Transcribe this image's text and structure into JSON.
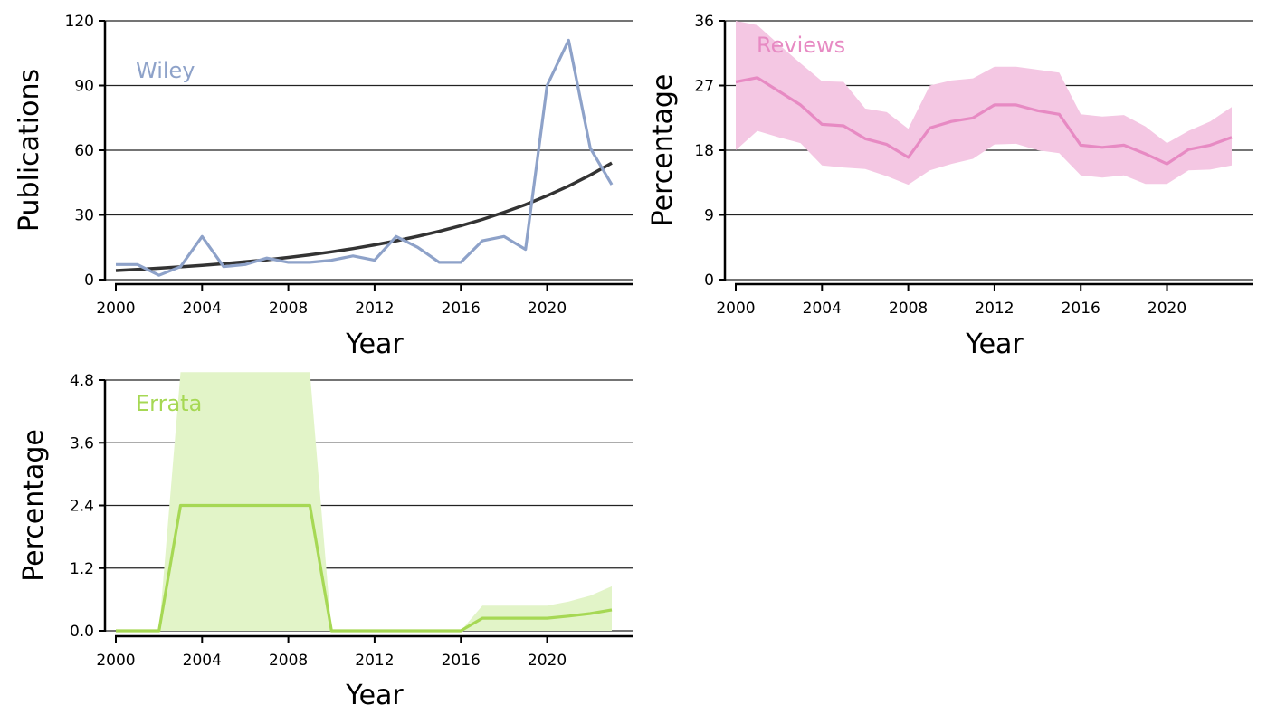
{
  "chart_data": [
    {
      "type": "line",
      "panel_label": "Wiley",
      "xlabel": "Year",
      "ylabel": "Publications",
      "xlim": [
        2000,
        2023
      ],
      "ylim": [
        0,
        120
      ],
      "xticks": [
        2000,
        2004,
        2008,
        2012,
        2016,
        2020
      ],
      "yticks": [
        0,
        30,
        60,
        90,
        120
      ],
      "grid": "horizontal",
      "color": "#8ea2c9",
      "x": [
        2000,
        2001,
        2002,
        2003,
        2004,
        2005,
        2006,
        2007,
        2008,
        2009,
        2010,
        2011,
        2012,
        2013,
        2014,
        2015,
        2016,
        2017,
        2018,
        2019,
        2020,
        2021,
        2022,
        2023
      ],
      "series": [
        {
          "values": [
            7,
            7,
            2,
            6,
            20,
            6,
            7,
            10,
            8,
            8,
            9,
            11,
            9,
            20,
            15,
            8,
            8,
            18,
            20,
            14,
            90,
            111,
            61,
            44
          ]
        }
      ],
      "trend": {
        "color": "#333333",
        "x": [
          2000,
          2001,
          2002,
          2003,
          2004,
          2005,
          2006,
          2007,
          2008,
          2009,
          2010,
          2011,
          2012,
          2013,
          2014,
          2015,
          2016,
          2017,
          2018,
          2019,
          2020,
          2021,
          2022,
          2023
        ],
        "values": [
          4.2,
          4.7,
          5.3,
          5.9,
          6.6,
          7.4,
          8.3,
          9.2,
          10.3,
          11.5,
          12.9,
          14.4,
          16.1,
          18.0,
          20.1,
          22.4,
          25.0,
          27.9,
          31.2,
          34.8,
          38.9,
          43.4,
          48.5,
          54.1
        ]
      }
    },
    {
      "type": "area",
      "panel_label": "Reviews",
      "xlabel": "Year",
      "ylabel": "Percentage",
      "xlim": [
        2000,
        2023
      ],
      "ylim": [
        0,
        36
      ],
      "xticks": [
        2000,
        2004,
        2008,
        2012,
        2016,
        2020
      ],
      "yticks": [
        0,
        9,
        18,
        27,
        36
      ],
      "grid": "horizontal",
      "color": "#e78ac3",
      "band_color": "#f4c7e3",
      "x": [
        2000,
        2001,
        2002,
        2003,
        2004,
        2005,
        2006,
        2007,
        2008,
        2009,
        2010,
        2011,
        2012,
        2013,
        2014,
        2015,
        2016,
        2017,
        2018,
        2019,
        2020,
        2021,
        2022,
        2023
      ],
      "series": [
        {
          "values": [
            27.5,
            28.1,
            26.2,
            24.3,
            21.6,
            21.4,
            19.6,
            18.8,
            17.0,
            21.1,
            22.0,
            22.5,
            24.3,
            24.3,
            23.5,
            23.0,
            18.7,
            18.4,
            18.7,
            17.5,
            16.1,
            18.1,
            18.7,
            19.8
          ],
          "lower": [
            18.0,
            20.7,
            19.8,
            19.0,
            15.9,
            15.6,
            15.4,
            14.4,
            13.2,
            15.2,
            16.1,
            16.8,
            18.8,
            18.9,
            18.0,
            17.6,
            14.5,
            14.2,
            14.5,
            13.3,
            13.3,
            15.2,
            15.3,
            15.9
          ],
          "upper": [
            36.0,
            35.4,
            32.7,
            30.1,
            27.6,
            27.5,
            23.8,
            23.3,
            21.0,
            27.0,
            27.7,
            28.0,
            29.6,
            29.6,
            29.2,
            28.8,
            23.0,
            22.7,
            22.9,
            21.3,
            19.0,
            20.7,
            22.0,
            24.0
          ]
        }
      ]
    },
    {
      "type": "area",
      "panel_label": "Errata",
      "xlabel": "Year",
      "ylabel": "Percentage",
      "xlim": [
        2000,
        2023
      ],
      "ylim": [
        0,
        4.8
      ],
      "xticks": [
        2000,
        2004,
        2008,
        2012,
        2016,
        2020
      ],
      "yticks": [
        0.0,
        1.2,
        2.4,
        3.6,
        4.8
      ],
      "ytick_labels": [
        "0.0",
        "1.2",
        "2.4",
        "3.6",
        "4.8"
      ],
      "grid": "horizontal",
      "color": "#a6d854",
      "band_color": "#e2f4c8",
      "x": [
        2000,
        2001,
        2002,
        2003,
        2004,
        2005,
        2006,
        2007,
        2008,
        2009,
        2010,
        2011,
        2012,
        2013,
        2014,
        2015,
        2016,
        2017,
        2018,
        2019,
        2020,
        2021,
        2022,
        2023
      ],
      "series": [
        {
          "values": [
            0,
            0,
            0,
            2.4,
            2.4,
            2.4,
            2.4,
            2.4,
            2.4,
            2.4,
            0,
            0,
            0,
            0,
            0,
            0,
            0,
            0.24,
            0.24,
            0.24,
            0.24,
            0.28,
            0.33,
            0.4
          ],
          "lower": [
            0,
            0,
            0,
            0,
            0,
            0,
            0,
            0,
            0,
            0,
            0,
            0,
            0,
            0,
            0,
            0,
            0,
            0,
            0,
            0,
            0,
            0,
            0,
            0
          ],
          "upper": [
            0,
            0,
            0,
            4.95,
            4.95,
            4.95,
            4.95,
            4.95,
            4.95,
            4.95,
            0,
            0,
            0,
            0,
            0,
            0,
            0,
            0.48,
            0.48,
            0.48,
            0.48,
            0.56,
            0.67,
            0.85
          ]
        }
      ]
    }
  ]
}
